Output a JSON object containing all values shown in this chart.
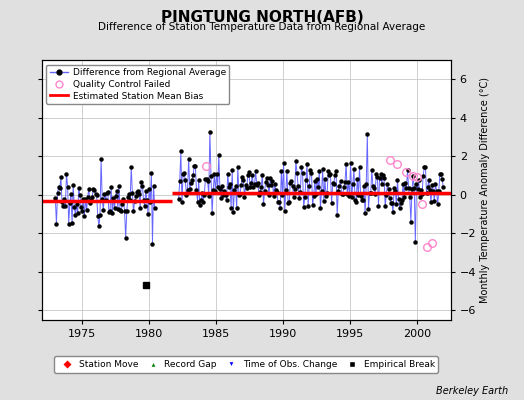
{
  "title": "PINGTUNG NORTH(AFB)",
  "subtitle": "Difference of Station Temperature Data from Regional Average",
  "ylabel": "Monthly Temperature Anomaly Difference (°C)",
  "credit": "Berkeley Earth",
  "xlim": [
    1972.0,
    2002.5
  ],
  "ylim": [
    -6.5,
    7.0
  ],
  "yticks": [
    -6,
    -4,
    -2,
    0,
    2,
    4,
    6
  ],
  "xticks": [
    1975,
    1980,
    1985,
    1990,
    1995,
    2000
  ],
  "background_color": "#e0e0e0",
  "plot_bg_color": "#ffffff",
  "grid_color": "#c8c8c8",
  "line_color": "#6666ff",
  "bias_color": "#ff0000",
  "marker_color": "#000000",
  "qc_color": "#ff88cc",
  "bias_segments": [
    {
      "x_start": 1972.0,
      "x_end": 1981.7,
      "bias": -0.32
    },
    {
      "x_start": 1981.7,
      "x_end": 2002.5,
      "bias": 0.08
    }
  ],
  "empirical_break_year": 1979.75,
  "empirical_break_value": -4.7,
  "gap_start": 1980.5,
  "gap_end": 1982.2,
  "seed": 17
}
